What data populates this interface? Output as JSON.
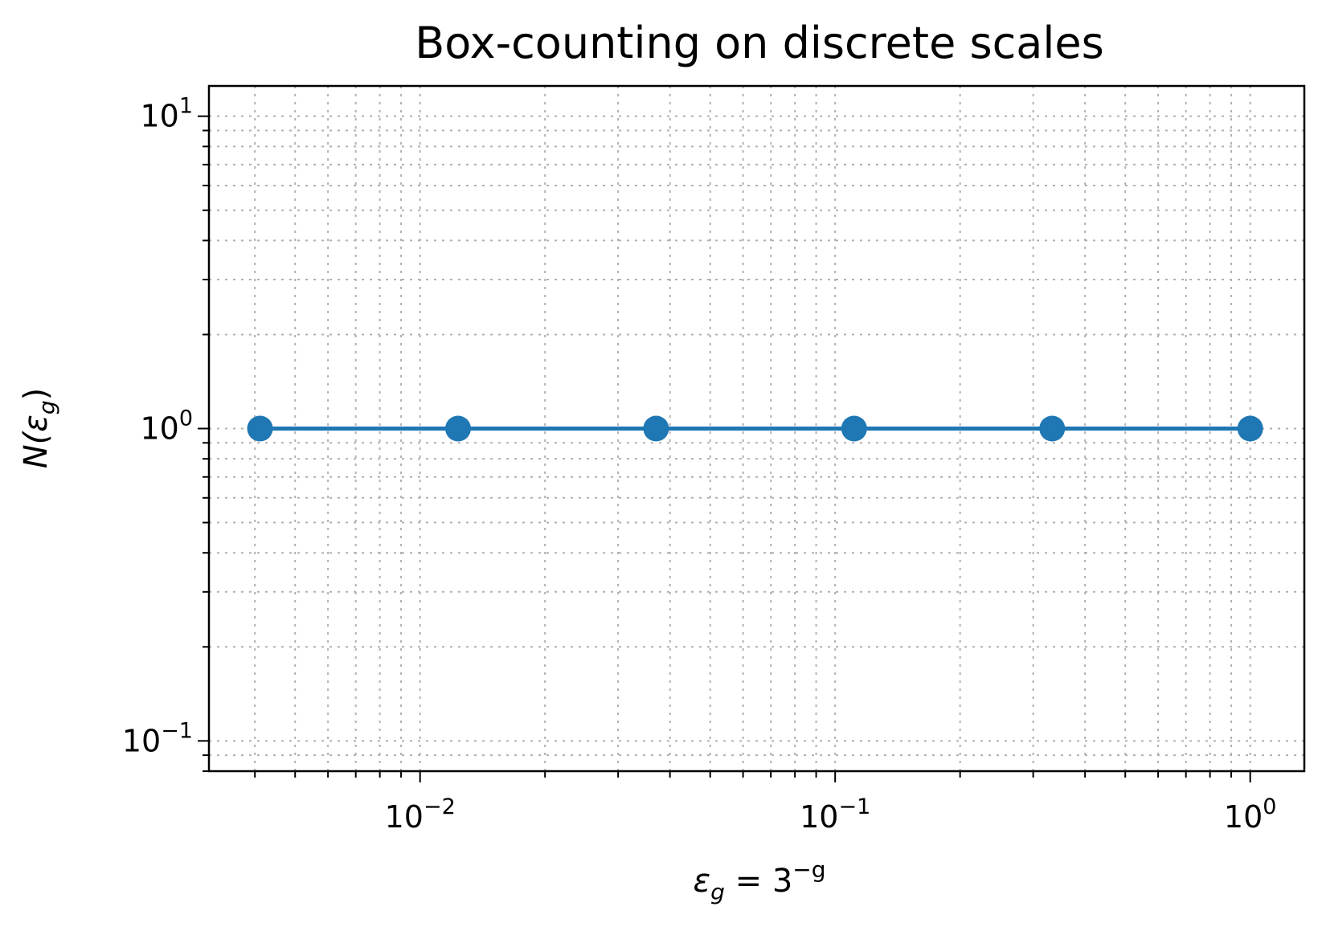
{
  "chart_data": {
    "type": "line",
    "title": "Box-counting on discrete scales",
    "xlabel": {
      "base": "ε",
      "sub": "g",
      "rest": " = 3",
      "sup": "−g"
    },
    "ylabel": {
      "pre": "N(",
      "base": "ε",
      "sub": "g",
      "post": ")"
    },
    "xscale": "log",
    "yscale": "log",
    "xlim": [
      0.0031,
      1.35
    ],
    "ylim": [
      0.08,
      12.5
    ],
    "grid": true,
    "x": [
      0.004115,
      0.012346,
      0.037037,
      0.111111,
      0.333333,
      1.0
    ],
    "series": [
      {
        "values": [
          1,
          1,
          1,
          1,
          1,
          1
        ],
        "color": "#1f77b4",
        "marker": "circle"
      }
    ],
    "xticks": [
      {
        "value": 0.01,
        "base": "10",
        "exp": "−2"
      },
      {
        "value": 0.1,
        "base": "10",
        "exp": "−1"
      },
      {
        "value": 1,
        "base": "10",
        "exp": "0"
      }
    ],
    "yticks": [
      {
        "value": 0.1,
        "base": "10",
        "exp": "−1"
      },
      {
        "value": 1,
        "base": "10",
        "exp": "0"
      },
      {
        "value": 10,
        "base": "10",
        "exp": "1"
      }
    ]
  }
}
